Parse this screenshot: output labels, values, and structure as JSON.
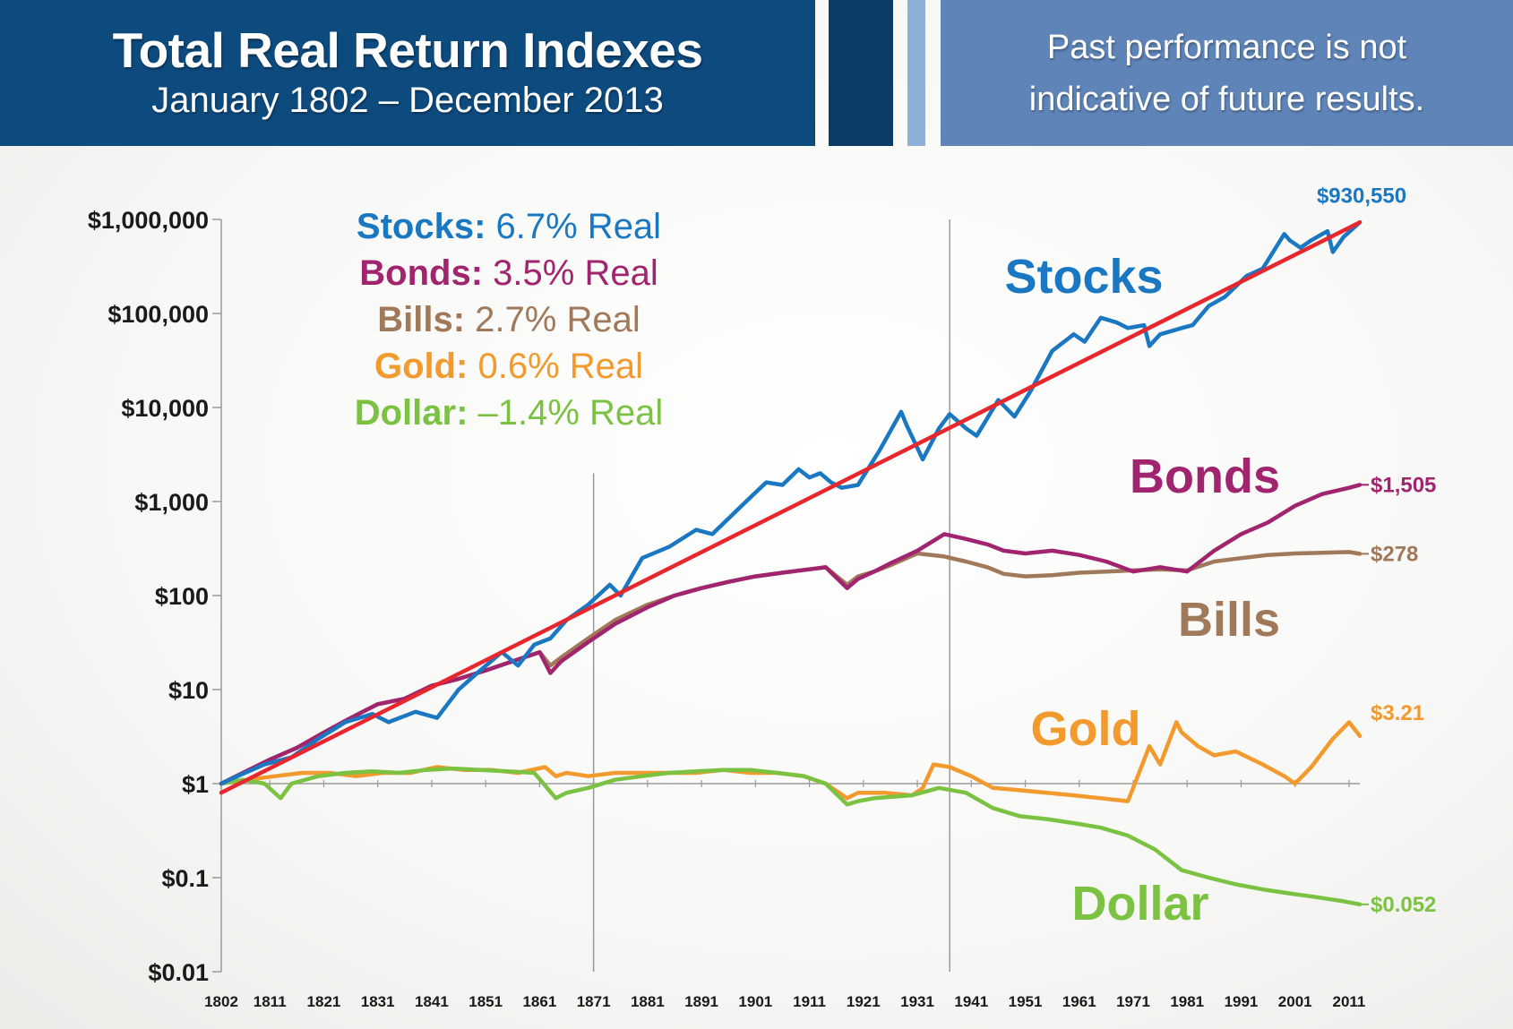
{
  "header": {
    "title": "Total Real Return Indexes",
    "subtitle": "January 1802 – December 2013",
    "disclaimer_line1": "Past performance is not",
    "disclaimer_line2": "indicative of future results."
  },
  "colors": {
    "stocks": "#1a78c2",
    "bonds": "#a0256e",
    "bills": "#a0785a",
    "gold": "#f29a2e",
    "dollar": "#7cc242",
    "trend": "#e8262d",
    "banner_dark": "#0d4a7e",
    "banner_light": "#5e84b8"
  },
  "chart_data": {
    "type": "line",
    "title": "Total Real Return Indexes",
    "subtitle": "January 1802 – December 2013",
    "yscale": "log",
    "ylim": [
      0.01,
      1000000
    ],
    "xlim": [
      1802,
      2013
    ],
    "y_ticks": [
      {
        "value": 1000000,
        "label": "$1,000,000"
      },
      {
        "value": 100000,
        "label": "$100,000"
      },
      {
        "value": 10000,
        "label": "$10,000"
      },
      {
        "value": 1000,
        "label": "$1,000"
      },
      {
        "value": 100,
        "label": "$100"
      },
      {
        "value": 10,
        "label": "$10"
      },
      {
        "value": 1,
        "label": "$1"
      },
      {
        "value": 0.1,
        "label": "$0.1"
      },
      {
        "value": 0.01,
        "label": "$0.01"
      }
    ],
    "x_ticks": [
      "1802",
      "1811",
      "1821",
      "1831",
      "1841",
      "1851",
      "1861",
      "1871",
      "1881",
      "1891",
      "1901",
      "1911",
      "1921",
      "1931",
      "1941",
      "1951",
      "1961",
      "1971",
      "1981",
      "1991",
      "2001",
      "2011"
    ],
    "vertical_lines": [
      1871,
      1937
    ],
    "legend": [
      {
        "key": "stocks",
        "name": "Stocks:",
        "value": "6.7% Real"
      },
      {
        "key": "bonds",
        "name": "Bonds:",
        "value": "3.5% Real"
      },
      {
        "key": "bills",
        "name": "Bills:",
        "value": "2.7% Real"
      },
      {
        "key": "gold",
        "name": "Gold:",
        "value": "0.6% Real"
      },
      {
        "key": "dollar",
        "name": "Dollar:",
        "value": "–1.4% Real"
      }
    ],
    "trend_line": {
      "x": [
        1802,
        2013
      ],
      "y": [
        0.8,
        930550
      ]
    },
    "series": [
      {
        "key": "stocks",
        "name": "Stocks",
        "end_label": "$930,550",
        "x": [
          1802,
          1805,
          1810,
          1815,
          1820,
          1825,
          1830,
          1833,
          1838,
          1842,
          1846,
          1850,
          1854,
          1857,
          1860,
          1863,
          1866,
          1870,
          1874,
          1876,
          1880,
          1885,
          1890,
          1893,
          1897,
          1900,
          1903,
          1906,
          1909,
          1911,
          1913,
          1915,
          1917,
          1920,
          1924,
          1928,
          1929,
          1932,
          1935,
          1937,
          1940,
          1942,
          1946,
          1949,
          1952,
          1956,
          1960,
          1962,
          1965,
          1968,
          1970,
          1973,
          1974,
          1976,
          1980,
          1982,
          1985,
          1988,
          1992,
          1995,
          1999,
          2000,
          2002,
          2004,
          2007,
          2008,
          2010,
          2013
        ],
        "y": [
          1,
          1.2,
          1.6,
          1.9,
          3,
          4.5,
          5.5,
          4.5,
          5.8,
          5,
          10,
          16,
          25,
          18,
          30,
          35,
          55,
          80,
          130,
          100,
          250,
          330,
          500,
          450,
          750,
          1100,
          1600,
          1500,
          2200,
          1800,
          2000,
          1600,
          1400,
          1500,
          3500,
          9000,
          6500,
          2800,
          6000,
          8500,
          6000,
          5000,
          12000,
          8000,
          15000,
          40000,
          60000,
          50000,
          90000,
          80000,
          70000,
          75000,
          45000,
          60000,
          70000,
          75000,
          120000,
          150000,
          250000,
          300000,
          700000,
          600000,
          500000,
          600000,
          750000,
          450000,
          650000,
          930550
        ]
      },
      {
        "key": "bonds",
        "name": "Bonds",
        "end_label": "$1,505",
        "x": [
          1802,
          1806,
          1811,
          1816,
          1821,
          1826,
          1831,
          1836,
          1841,
          1846,
          1851,
          1856,
          1861,
          1863,
          1865,
          1870,
          1875,
          1881,
          1886,
          1891,
          1896,
          1901,
          1906,
          1911,
          1914,
          1918,
          1920,
          1923,
          1926,
          1931,
          1936,
          1940,
          1944,
          1947,
          1951,
          1956,
          1961,
          1966,
          1971,
          1976,
          1981,
          1986,
          1991,
          1996,
          2001,
          2006,
          2011,
          2013
        ],
        "y": [
          1,
          1.3,
          1.8,
          2.4,
          3.5,
          5,
          7,
          8,
          11,
          13,
          16,
          20,
          25,
          15,
          20,
          32,
          50,
          75,
          100,
          120,
          140,
          160,
          175,
          190,
          200,
          120,
          150,
          180,
          220,
          300,
          450,
          400,
          350,
          300,
          280,
          300,
          270,
          230,
          180,
          200,
          180,
          300,
          450,
          600,
          900,
          1200,
          1400,
          1505
        ]
      },
      {
        "key": "bills",
        "name": "Bills",
        "end_label": "$278",
        "x": [
          1802,
          1806,
          1811,
          1816,
          1821,
          1826,
          1831,
          1836,
          1841,
          1846,
          1851,
          1856,
          1861,
          1863,
          1865,
          1870,
          1875,
          1881,
          1886,
          1891,
          1896,
          1901,
          1906,
          1911,
          1914,
          1918,
          1920,
          1923,
          1926,
          1931,
          1936,
          1940,
          1944,
          1947,
          1951,
          1956,
          1961,
          1966,
          1971,
          1976,
          1981,
          1986,
          1991,
          1996,
          2001,
          2006,
          2011,
          2013
        ],
        "y": [
          1,
          1.3,
          1.8,
          2.4,
          3.5,
          5,
          7,
          8,
          11,
          13,
          16,
          20,
          25,
          18,
          22,
          35,
          55,
          80,
          100,
          120,
          140,
          160,
          175,
          190,
          200,
          130,
          160,
          180,
          210,
          280,
          260,
          230,
          200,
          170,
          160,
          165,
          175,
          180,
          185,
          190,
          185,
          230,
          250,
          270,
          280,
          285,
          290,
          278
        ]
      },
      {
        "key": "gold",
        "name": "Gold",
        "end_label": "$3.21",
        "x": [
          1802,
          1807,
          1812,
          1817,
          1822,
          1827,
          1832,
          1837,
          1842,
          1847,
          1852,
          1857,
          1862,
          1864,
          1866,
          1870,
          1875,
          1880,
          1885,
          1890,
          1895,
          1900,
          1905,
          1910,
          1914,
          1918,
          1920,
          1925,
          1930,
          1932,
          1934,
          1937,
          1941,
          1945,
          1950,
          1955,
          1960,
          1965,
          1970,
          1971,
          1974,
          1976,
          1979,
          1980,
          1983,
          1986,
          1990,
          1995,
          1999,
          2001,
          2004,
          2008,
          2011,
          2013
        ],
        "y": [
          1,
          1.1,
          1.2,
          1.3,
          1.3,
          1.2,
          1.3,
          1.3,
          1.5,
          1.4,
          1.4,
          1.3,
          1.5,
          1.2,
          1.3,
          1.2,
          1.3,
          1.3,
          1.3,
          1.3,
          1.4,
          1.3,
          1.3,
          1.2,
          1.0,
          0.7,
          0.8,
          0.8,
          0.75,
          0.9,
          1.6,
          1.5,
          1.2,
          0.9,
          0.85,
          0.8,
          0.75,
          0.7,
          0.65,
          0.9,
          2.5,
          1.6,
          4.5,
          3.5,
          2.5,
          2.0,
          2.2,
          1.6,
          1.2,
          1.0,
          1.5,
          3.0,
          4.5,
          3.21
        ]
      },
      {
        "key": "dollar",
        "name": "Dollar",
        "end_label": "$0.052",
        "x": [
          1802,
          1806,
          1810,
          1813,
          1815,
          1820,
          1825,
          1830,
          1835,
          1840,
          1845,
          1850,
          1855,
          1860,
          1864,
          1866,
          1870,
          1875,
          1880,
          1885,
          1890,
          1895,
          1900,
          1905,
          1910,
          1914,
          1918,
          1920,
          1923,
          1930,
          1935,
          1940,
          1945,
          1950,
          1955,
          1960,
          1965,
          1970,
          1975,
          1980,
          1985,
          1990,
          1995,
          2000,
          2005,
          2010,
          2013
        ],
        "y": [
          1,
          1.1,
          1.0,
          0.7,
          1.0,
          1.2,
          1.3,
          1.35,
          1.3,
          1.4,
          1.45,
          1.4,
          1.35,
          1.3,
          0.7,
          0.8,
          0.9,
          1.1,
          1.2,
          1.3,
          1.35,
          1.4,
          1.4,
          1.3,
          1.2,
          1.0,
          0.6,
          0.65,
          0.7,
          0.75,
          0.9,
          0.8,
          0.55,
          0.45,
          0.42,
          0.38,
          0.34,
          0.28,
          0.2,
          0.12,
          0.1,
          0.085,
          0.075,
          0.068,
          0.062,
          0.056,
          0.052
        ]
      }
    ],
    "big_labels": [
      {
        "key": "stocks",
        "text": "Stocks"
      },
      {
        "key": "bonds",
        "text": "Bonds"
      },
      {
        "key": "bills",
        "text": "Bills"
      },
      {
        "key": "gold",
        "text": "Gold"
      },
      {
        "key": "dollar",
        "text": "Dollar"
      }
    ]
  }
}
